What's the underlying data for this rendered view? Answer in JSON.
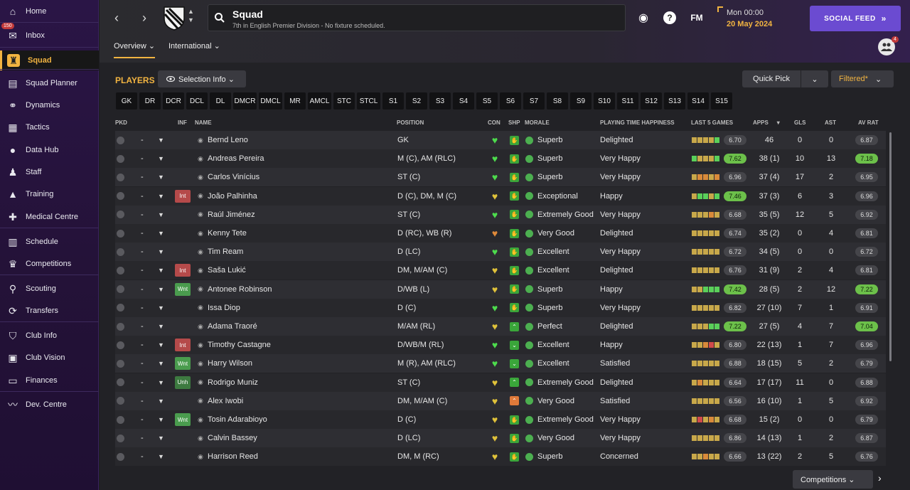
{
  "sidebar": {
    "items": [
      {
        "label": "Home",
        "icon": "home-icon",
        "glyph": "⌂"
      },
      {
        "label": "Inbox",
        "icon": "inbox-icon",
        "glyph": "✉",
        "badge": "150"
      },
      {
        "label": "Squad",
        "icon": "shirt-icon",
        "glyph": "♜",
        "active": true
      },
      {
        "label": "Squad Planner",
        "icon": "clipboard-icon",
        "glyph": "▤"
      },
      {
        "label": "Dynamics",
        "icon": "dynamics-icon",
        "glyph": "⚭"
      },
      {
        "label": "Tactics",
        "icon": "tactics-icon",
        "glyph": "▦"
      },
      {
        "label": "Data Hub",
        "icon": "data-hub-icon",
        "glyph": "●"
      },
      {
        "label": "Staff",
        "icon": "staff-icon",
        "glyph": "♟"
      },
      {
        "label": "Training",
        "icon": "training-icon",
        "glyph": "▲"
      },
      {
        "label": "Medical Centre",
        "icon": "medical-icon",
        "glyph": "✚"
      },
      {
        "label": "Schedule",
        "icon": "schedule-icon",
        "glyph": "▥"
      },
      {
        "label": "Competitions",
        "icon": "trophy-icon",
        "glyph": "♛"
      },
      {
        "label": "Scouting",
        "icon": "scouting-icon",
        "glyph": "⚲"
      },
      {
        "label": "Transfers",
        "icon": "transfers-icon",
        "glyph": "⟳"
      },
      {
        "label": "Club Info",
        "icon": "club-info-icon",
        "glyph": "⛉"
      },
      {
        "label": "Club Vision",
        "icon": "club-vision-icon",
        "glyph": "▣"
      },
      {
        "label": "Finances",
        "icon": "finances-icon",
        "glyph": "▭"
      },
      {
        "label": "Dev. Centre",
        "icon": "dev-centre-icon",
        "glyph": "〰"
      }
    ]
  },
  "header": {
    "title": "Squad",
    "subtitle": "7th in English Premier Division - No fixture scheduled.",
    "date_time": "Mon 00:00",
    "date": "20 May 2024",
    "social_feed": "SOCIAL FEED",
    "social_glyph": "»",
    "help_glyph": "?",
    "fm_label": "FM",
    "ball_glyph": "◉",
    "back_glyph": "‹",
    "fwd_glyph": "›",
    "people_badge": "4",
    "tabs": [
      "Overview ⌄",
      "International ⌄"
    ]
  },
  "toolbar": {
    "players_label": "PLAYERS",
    "selection_info": "Selection Info ⌄",
    "quick_pick": "Quick Pick",
    "filtered": "Filtered*",
    "dropdown_glyph": "⌄",
    "competitions": "Competitions ⌄",
    "next_glyph": "›"
  },
  "positions": [
    "GK",
    "DR",
    "DCR",
    "DCL",
    "DL",
    "DMCR",
    "DMCL",
    "MR",
    "AMCL",
    "STC",
    "STCL",
    "S1",
    "S2",
    "S3",
    "S4",
    "S5",
    "S6",
    "S7",
    "S8",
    "S9",
    "S10",
    "S11",
    "S12",
    "S13",
    "S14",
    "S15"
  ],
  "columns": {
    "pkd": "PKD",
    "inf": "INF",
    "name": "NAME",
    "position": "POSITION",
    "con": "CON",
    "shp": "SHP",
    "morale": "MORALE",
    "pth": "PLAYING TIME HAPPINESS",
    "last5": "LAST 5 GAMES",
    "apps": "APPS",
    "gls": "GLS",
    "ast": "AST",
    "avrat": "AV RAT",
    "sort_glyph": "▾"
  },
  "colors": {
    "accent": "#f2b441",
    "good_green": "#6cc04a",
    "bad_red": "#b54a4a",
    "brand_purple": "#6b4bd1",
    "con_green": "#4ddc4d",
    "con_yellow": "#e0c23a",
    "con_orange": "#e08a3a"
  },
  "players": [
    {
      "pkd": "-",
      "inf": "",
      "name": "Bernd Leno",
      "position": "GK",
      "con": "green",
      "shp": "green",
      "morale": "Superb",
      "pth": "Delighted",
      "last5": [
        "y",
        "y",
        "y",
        "y",
        "g"
      ],
      "last5_rating": "6.70",
      "last5_good": false,
      "apps": "46",
      "gls": "0",
      "ast": "0",
      "avrat": "6.87",
      "avrat_good": false
    },
    {
      "pkd": "-",
      "inf": "",
      "name": "Andreas Pereira",
      "position": "M (C), AM (RLC)",
      "con": "green",
      "shp": "green",
      "morale": "Superb",
      "pth": "Very Happy",
      "last5": [
        "g",
        "y",
        "y",
        "y",
        "g"
      ],
      "last5_rating": "7.62",
      "last5_good": true,
      "apps": "38 (1)",
      "gls": "10",
      "ast": "13",
      "avrat": "7.18",
      "avrat_good": true
    },
    {
      "pkd": "-",
      "inf": "",
      "name": "Carlos Vinícius",
      "position": "ST (C)",
      "con": "green",
      "shp": "green",
      "morale": "Superb",
      "pth": "Very Happy",
      "last5": [
        "y",
        "o",
        "o",
        "y",
        "o"
      ],
      "last5_rating": "6.96",
      "last5_good": false,
      "apps": "37 (4)",
      "gls": "17",
      "ast": "2",
      "avrat": "6.95",
      "avrat_good": false
    },
    {
      "pkd": "-",
      "inf": "Int",
      "name": "João Palhinha",
      "position": "D (C), DM, M (C)",
      "con": "yellow",
      "shp": "green",
      "morale": "Exceptional",
      "pth": "Happy",
      "last5": [
        "y",
        "g",
        "g",
        "y",
        "g"
      ],
      "last5_rating": "7.46",
      "last5_good": true,
      "apps": "37 (3)",
      "gls": "6",
      "ast": "3",
      "avrat": "6.96",
      "avrat_good": false
    },
    {
      "pkd": "-",
      "inf": "",
      "name": "Raúl Jiménez",
      "position": "ST (C)",
      "con": "green",
      "shp": "green",
      "morale": "Extremely Good",
      "pth": "Very Happy",
      "last5": [
        "y",
        "y",
        "y",
        "o",
        "y"
      ],
      "last5_rating": "6.68",
      "last5_good": false,
      "apps": "35 (5)",
      "gls": "12",
      "ast": "5",
      "avrat": "6.92",
      "avrat_good": false
    },
    {
      "pkd": "-",
      "inf": "",
      "name": "Kenny Tete",
      "position": "D (RC), WB (R)",
      "con": "orange",
      "shp": "green",
      "morale": "Very Good",
      "pth": "Delighted",
      "last5": [
        "y",
        "y",
        "y",
        "y",
        "y"
      ],
      "last5_rating": "6.74",
      "last5_good": false,
      "apps": "35 (2)",
      "gls": "0",
      "ast": "4",
      "avrat": "6.81",
      "avrat_good": false
    },
    {
      "pkd": "-",
      "inf": "",
      "name": "Tim Ream",
      "position": "D (LC)",
      "con": "green",
      "shp": "green",
      "morale": "Excellent",
      "pth": "Very Happy",
      "last5": [
        "y",
        "y",
        "y",
        "y",
        "y"
      ],
      "last5_rating": "6.72",
      "last5_good": false,
      "apps": "34 (5)",
      "gls": "0",
      "ast": "0",
      "avrat": "6.72",
      "avrat_good": false
    },
    {
      "pkd": "-",
      "inf": "Int",
      "name": "Saša Lukić",
      "position": "DM, M/AM (C)",
      "con": "yellow",
      "shp": "green",
      "morale": "Excellent",
      "pth": "Delighted",
      "last5": [
        "y",
        "y",
        "y",
        "y",
        "y"
      ],
      "last5_rating": "6.76",
      "last5_good": false,
      "apps": "31 (9)",
      "gls": "2",
      "ast": "4",
      "avrat": "6.81",
      "avrat_good": false
    },
    {
      "pkd": "-",
      "inf": "Wnt",
      "name": "Antonee Robinson",
      "position": "D/WB (L)",
      "con": "yellow",
      "shp": "green",
      "morale": "Superb",
      "pth": "Happy",
      "last5": [
        "y",
        "y",
        "g",
        "g",
        "g"
      ],
      "last5_rating": "7.42",
      "last5_good": true,
      "apps": "28 (5)",
      "gls": "2",
      "ast": "12",
      "avrat": "7.22",
      "avrat_good": true
    },
    {
      "pkd": "-",
      "inf": "",
      "name": "Issa Diop",
      "position": "D (C)",
      "con": "green",
      "shp": "green",
      "morale": "Superb",
      "pth": "Very Happy",
      "last5": [
        "y",
        "y",
        "y",
        "y",
        "y"
      ],
      "last5_rating": "6.82",
      "last5_good": false,
      "apps": "27 (10)",
      "gls": "7",
      "ast": "1",
      "avrat": "6.91",
      "avrat_good": false
    },
    {
      "pkd": "-",
      "inf": "",
      "name": "Adama Traoré",
      "position": "M/AM (RL)",
      "con": "yellow",
      "shp": "up",
      "morale": "Perfect",
      "pth": "Delighted",
      "last5": [
        "y",
        "y",
        "y",
        "g",
        "g"
      ],
      "last5_rating": "7.22",
      "last5_good": true,
      "apps": "27 (5)",
      "gls": "4",
      "ast": "7",
      "avrat": "7.04",
      "avrat_good": true
    },
    {
      "pkd": "-",
      "inf": "Int",
      "name": "Timothy Castagne",
      "position": "D/WB/M (RL)",
      "con": "green",
      "shp": "down",
      "morale": "Excellent",
      "pth": "Happy",
      "last5": [
        "y",
        "y",
        "o",
        "r",
        "y"
      ],
      "last5_rating": "6.80",
      "last5_good": false,
      "apps": "22 (13)",
      "gls": "1",
      "ast": "7",
      "avrat": "6.96",
      "avrat_good": false
    },
    {
      "pkd": "-",
      "inf": "Wnt",
      "name": "Harry Wilson",
      "position": "M (R), AM (RLC)",
      "con": "green",
      "shp": "down",
      "morale": "Excellent",
      "pth": "Satisfied",
      "last5": [
        "y",
        "y",
        "y",
        "y",
        "y"
      ],
      "last5_rating": "6.88",
      "last5_good": false,
      "apps": "18 (15)",
      "gls": "5",
      "ast": "2",
      "avrat": "6.79",
      "avrat_good": false
    },
    {
      "pkd": "-",
      "inf": "Unh",
      "name": "Rodrigo Muniz",
      "position": "ST (C)",
      "con": "yellow",
      "shp": "up",
      "morale": "Extremely Good",
      "pth": "Delighted",
      "last5": [
        "y",
        "o",
        "y",
        "y",
        "y"
      ],
      "last5_rating": "6.64",
      "last5_good": false,
      "apps": "17 (17)",
      "gls": "11",
      "ast": "0",
      "avrat": "6.88",
      "avrat_good": false
    },
    {
      "pkd": "-",
      "inf": "",
      "name": "Alex Iwobi",
      "position": "DM, M/AM (C)",
      "con": "yellow",
      "shp": "warn",
      "morale": "Very Good",
      "pth": "Satisfied",
      "last5": [
        "y",
        "y",
        "y",
        "y",
        "y"
      ],
      "last5_rating": "6.56",
      "last5_good": false,
      "apps": "16 (10)",
      "gls": "1",
      "ast": "5",
      "avrat": "6.92",
      "avrat_good": false
    },
    {
      "pkd": "-",
      "inf": "Wnt",
      "name": "Tosin Adarabioyo",
      "position": "D (C)",
      "con": "yellow",
      "shp": "green",
      "morale": "Extremely Good",
      "pth": "Very Happy",
      "last5": [
        "y",
        "r",
        "y",
        "o",
        "y"
      ],
      "last5_rating": "6.68",
      "last5_good": false,
      "apps": "15 (2)",
      "gls": "0",
      "ast": "0",
      "avrat": "6.79",
      "avrat_good": false
    },
    {
      "pkd": "-",
      "inf": "",
      "name": "Calvin Bassey",
      "position": "D (LC)",
      "con": "yellow",
      "shp": "green",
      "morale": "Very Good",
      "pth": "Very Happy",
      "last5": [
        "y",
        "y",
        "y",
        "y",
        "y"
      ],
      "last5_rating": "6.86",
      "last5_good": false,
      "apps": "14 (13)",
      "gls": "1",
      "ast": "2",
      "avrat": "6.87",
      "avrat_good": false
    },
    {
      "pkd": "-",
      "inf": "",
      "name": "Harrison Reed",
      "position": "DM, M (RC)",
      "con": "yellow",
      "shp": "green",
      "morale": "Superb",
      "pth": "Concerned",
      "last5": [
        "y",
        "y",
        "o",
        "y",
        "y"
      ],
      "last5_rating": "6.66",
      "last5_good": false,
      "apps": "13 (22)",
      "gls": "2",
      "ast": "5",
      "avrat": "6.76",
      "avrat_good": false
    }
  ]
}
